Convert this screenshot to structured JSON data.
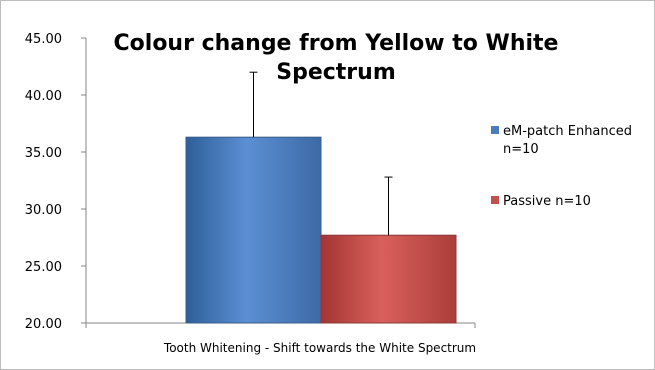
{
  "chart_data": {
    "type": "bar",
    "title_line1": "Colour change from Yellow to White",
    "title_line2": "Spectrum",
    "xlabel": "Tooth Whitening - Shift towards the White Spectrum",
    "ylabel": "",
    "ylim": [
      20,
      45
    ],
    "yticks": [
      "20.00",
      "25.00",
      "30.00",
      "35.00",
      "40.00",
      "45.00"
    ],
    "grid": false,
    "legend_position": "right",
    "series": [
      {
        "name_line1": "eM-patch Enhanced",
        "name_line2": "n=10",
        "value": 36.3,
        "error": 5.7,
        "color": "#4a7ebb"
      },
      {
        "name_line1": "Passive n=10",
        "name_line2": "",
        "value": 27.7,
        "error": 5.1,
        "color": "#c0504d"
      }
    ]
  }
}
